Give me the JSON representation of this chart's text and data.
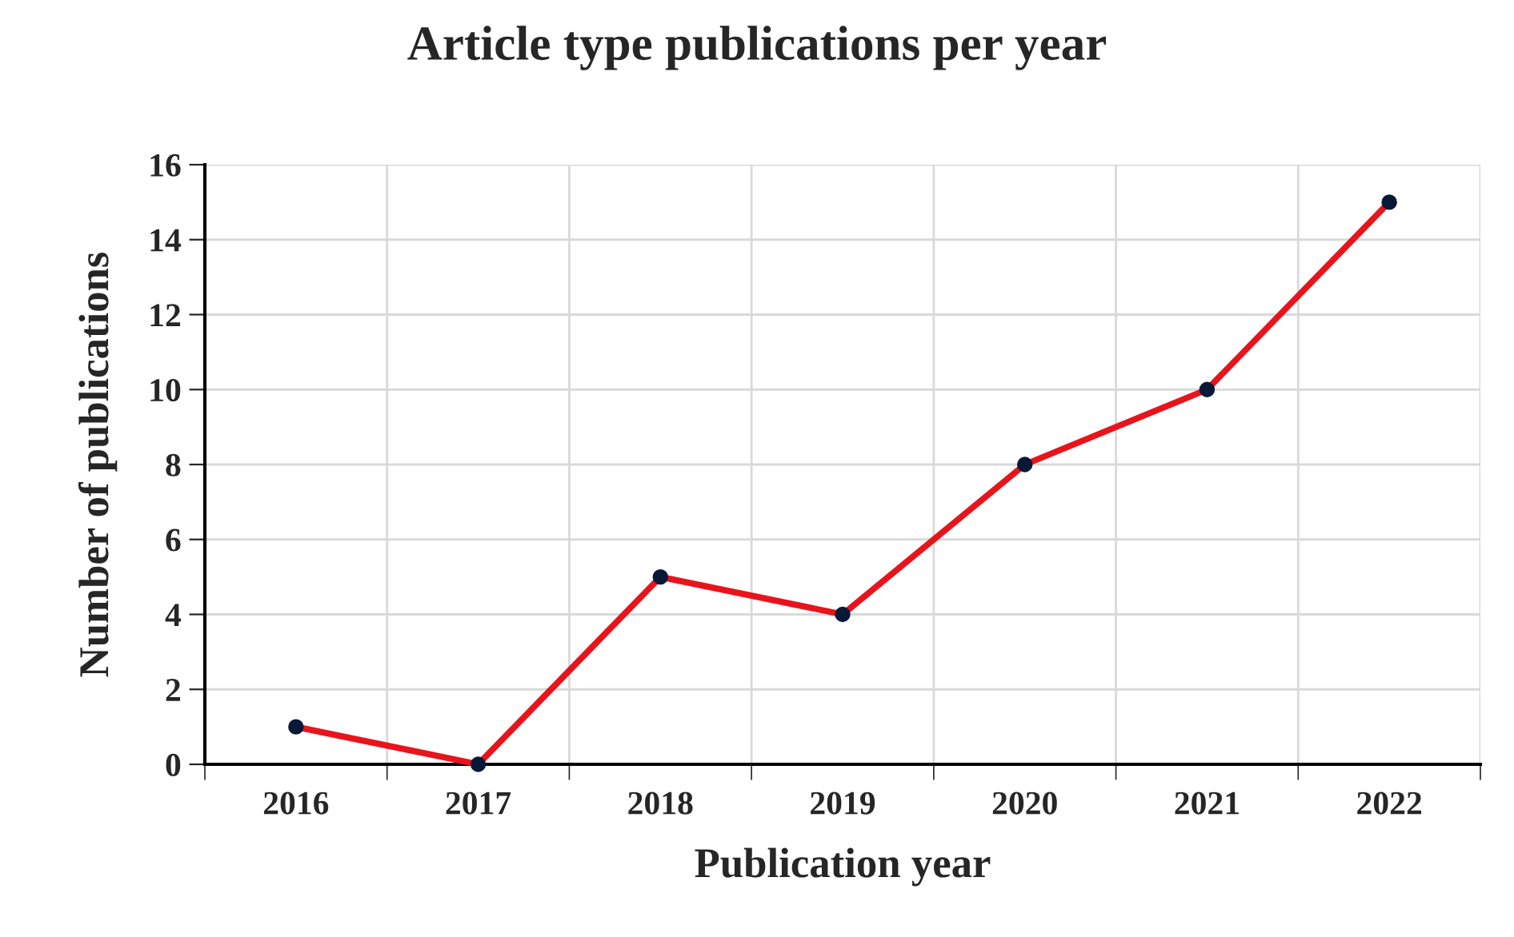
{
  "chart_data": {
    "type": "line",
    "title": "Article type publications per year",
    "xlabel": "Publication year",
    "ylabel": "Number of publications",
    "categories": [
      "2016",
      "2017",
      "2018",
      "2019",
      "2020",
      "2021",
      "2022"
    ],
    "series": [
      {
        "color": "#e8141c",
        "values": [
          1,
          0,
          5,
          4,
          8,
          10,
          15
        ]
      }
    ],
    "ylim": [
      0,
      16
    ],
    "yticks": [
      0,
      2,
      4,
      6,
      8,
      10,
      12,
      14,
      16
    ],
    "grid": true,
    "marker": "circle",
    "line_style": "solid"
  }
}
